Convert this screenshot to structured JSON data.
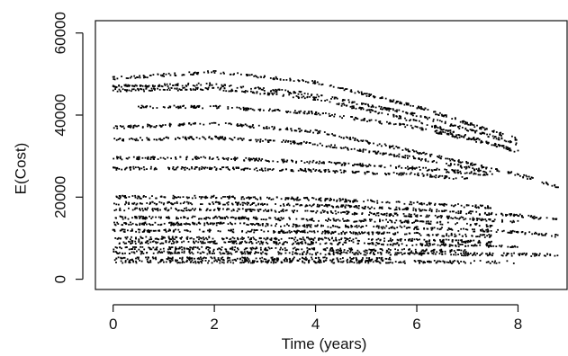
{
  "chart_data": {
    "type": "scatter",
    "title": "",
    "xlabel": "Time (years)",
    "ylabel": "E(Cost)",
    "xlim": [
      -0.35,
      8.97
    ],
    "ylim": [
      -2500,
      63000
    ],
    "x_ticks": [
      0,
      2,
      4,
      6,
      8
    ],
    "x_tick_labels": [
      "0",
      "2",
      "4",
      "6",
      "8"
    ],
    "y_ticks": [
      0,
      20000,
      40000,
      60000
    ],
    "y_tick_labels": [
      "0",
      "20000",
      "40000",
      "60000"
    ],
    "grid": false,
    "legend": "none",
    "point_color": "#000000",
    "series": [
      {
        "x": [
          0.0,
          2.0,
          4.0,
          6.0,
          8.0
        ],
        "values": [
          49000,
          50500,
          48000,
          42000,
          34000
        ]
      },
      {
        "x": [
          0.0,
          2.0,
          4.0,
          6.0,
          8.0
        ],
        "values": [
          47000,
          47500,
          45000,
          40000,
          33000
        ]
      },
      {
        "x": [
          0.0,
          2.0,
          4.0,
          6.0,
          8.0
        ],
        "values": [
          46000,
          46500,
          44000,
          38500,
          31000
        ]
      },
      {
        "x": [
          0.5,
          2.0,
          4.0,
          6.0,
          7.8
        ],
        "values": [
          42000,
          42000,
          40500,
          37000,
          32000
        ]
      },
      {
        "x": [
          0.0,
          2.0,
          4.0,
          6.0,
          8.0,
          8.8
        ],
        "values": [
          37000,
          38000,
          36000,
          31000,
          25500,
          22500
        ]
      },
      {
        "x": [
          0.0,
          2.0,
          4.0,
          6.0,
          7.5
        ],
        "values": [
          34000,
          34500,
          33000,
          29500,
          26000
        ]
      },
      {
        "x": [
          0.0,
          2.0,
          4.0,
          6.0,
          7.5
        ],
        "values": [
          29500,
          29500,
          28500,
          27000,
          25500
        ]
      },
      {
        "x": [
          0.0,
          2.0,
          4.0,
          6.0,
          7.0
        ],
        "values": [
          27000,
          27000,
          26500,
          25500,
          24500
        ]
      },
      {
        "x": [
          0.0,
          2.0,
          4.0,
          6.0,
          7.5
        ],
        "values": [
          20000,
          20000,
          19500,
          18500,
          17500
        ]
      },
      {
        "x": [
          0.0,
          2.0,
          4.0,
          6.0,
          8.0,
          8.8
        ],
        "values": [
          18500,
          18500,
          18000,
          17000,
          15500,
          14500
        ]
      },
      {
        "x": [
          0.0,
          2.0,
          4.0,
          6.0,
          8.0
        ],
        "values": [
          17000,
          17000,
          16500,
          15500,
          14000
        ]
      },
      {
        "x": [
          0.0,
          2.0,
          4.0,
          6.0,
          7.5
        ],
        "values": [
          15000,
          15000,
          14500,
          14000,
          13000
        ]
      },
      {
        "x": [
          0.0,
          2.0,
          4.0,
          6.0,
          8.0,
          8.8
        ],
        "values": [
          13500,
          13500,
          13000,
          12500,
          11500,
          10500
        ]
      },
      {
        "x": [
          0.0,
          2.0,
          4.0,
          6.0,
          7.5
        ],
        "values": [
          11800,
          11800,
          11500,
          11000,
          10500
        ]
      },
      {
        "x": [
          0.0,
          2.0,
          4.0,
          6.0,
          7.5
        ],
        "values": [
          10000,
          10000,
          9800,
          9500,
          9000
        ]
      },
      {
        "x": [
          0.0,
          2.0,
          4.0,
          6.0,
          8.0
        ],
        "values": [
          9000,
          9000,
          8800,
          8500,
          8000
        ]
      },
      {
        "x": [
          0.0,
          2.0,
          4.0,
          6.0,
          7.0
        ],
        "values": [
          7500,
          7500,
          7300,
          7000,
          6800
        ]
      },
      {
        "x": [
          0.0,
          2.0,
          4.0,
          6.0,
          8.0,
          8.8
        ],
        "values": [
          6500,
          6500,
          6300,
          6200,
          6000,
          5800
        ]
      },
      {
        "x": [
          0.0,
          2.0,
          4.0,
          5.5
        ],
        "values": [
          5000,
          5000,
          5000,
          4900
        ]
      },
      {
        "x": [
          0.0,
          2.0,
          4.0,
          6.0,
          8.0
        ],
        "values": [
          4300,
          4300,
          4300,
          4200,
          4200
        ]
      }
    ]
  }
}
